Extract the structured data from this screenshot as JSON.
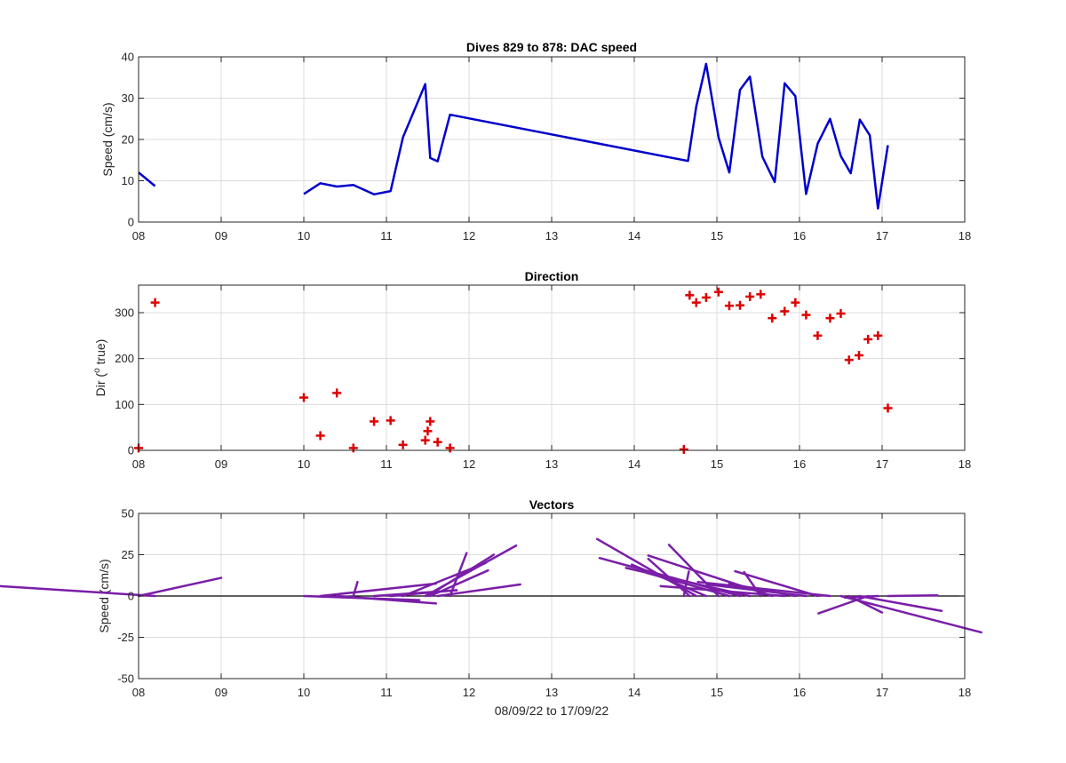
{
  "figure": {
    "xlabel": "08/09/22 to 17/09/22",
    "x_ticks": [
      8,
      9,
      10,
      11,
      12,
      13,
      14,
      15,
      16,
      17,
      18
    ],
    "x_tick_labels": [
      "08",
      "09",
      "10",
      "11",
      "12",
      "13",
      "14",
      "15",
      "16",
      "17",
      "18"
    ]
  },
  "chart_data": [
    {
      "type": "line",
      "title": "Dives 829 to 878: DAC speed",
      "ylabel": "Speed (cm/s)",
      "xlim": [
        8,
        18
      ],
      "ylim": [
        0,
        40
      ],
      "y_ticks": [
        0,
        10,
        20,
        30,
        40
      ],
      "grid": true,
      "color": "#0000cc",
      "segments": [
        [
          [
            8.0,
            12.0
          ],
          [
            8.2,
            8.7
          ]
        ],
        [
          [
            10.0,
            6.8
          ],
          [
            10.2,
            9.4
          ],
          [
            10.4,
            8.6
          ],
          [
            10.6,
            9.0
          ],
          [
            10.85,
            6.7
          ],
          [
            11.05,
            7.5
          ],
          [
            11.2,
            20.5
          ],
          [
            11.47,
            33.4
          ],
          [
            11.53,
            15.5
          ],
          [
            11.62,
            14.7
          ],
          [
            11.77,
            26.0
          ],
          [
            14.65,
            14.8
          ],
          [
            14.75,
            28.0
          ],
          [
            14.87,
            38.3
          ],
          [
            15.02,
            20.5
          ],
          [
            15.15,
            12.0
          ],
          [
            15.28,
            32.0
          ],
          [
            15.4,
            35.2
          ],
          [
            15.55,
            15.8
          ],
          [
            15.7,
            9.7
          ],
          [
            15.82,
            33.6
          ],
          [
            15.95,
            30.5
          ],
          [
            16.08,
            6.8
          ],
          [
            16.22,
            19.0
          ],
          [
            16.37,
            25.0
          ],
          [
            16.5,
            16.0
          ],
          [
            16.62,
            11.8
          ],
          [
            16.73,
            24.8
          ],
          [
            16.85,
            21.0
          ],
          [
            16.95,
            3.3
          ],
          [
            17.07,
            18.6
          ]
        ]
      ]
    },
    {
      "type": "scatter",
      "title": "Direction",
      "ylabel": "Dir (° true)",
      "ylabel_parts": [
        "Dir (",
        "o",
        " true)"
      ],
      "xlim": [
        8,
        18
      ],
      "ylim": [
        0,
        360
      ],
      "y_ticks": [
        0,
        100,
        200,
        300
      ],
      "grid": true,
      "marker": "+",
      "color": "#dd0000",
      "points": [
        [
          8.0,
          5
        ],
        [
          8.2,
          322
        ],
        [
          10.0,
          115
        ],
        [
          10.2,
          32
        ],
        [
          10.4,
          125
        ],
        [
          10.6,
          5
        ],
        [
          10.85,
          63
        ],
        [
          11.05,
          65
        ],
        [
          11.2,
          12
        ],
        [
          11.47,
          22
        ],
        [
          11.5,
          42
        ],
        [
          11.53,
          63
        ],
        [
          11.62,
          18
        ],
        [
          11.77,
          5
        ],
        [
          14.6,
          2
        ],
        [
          14.67,
          338
        ],
        [
          14.75,
          322
        ],
        [
          14.87,
          333
        ],
        [
          15.02,
          345
        ],
        [
          15.15,
          315
        ],
        [
          15.28,
          316
        ],
        [
          15.4,
          335
        ],
        [
          15.53,
          340
        ],
        [
          15.67,
          288
        ],
        [
          15.82,
          303
        ],
        [
          15.95,
          322
        ],
        [
          16.08,
          295
        ],
        [
          16.22,
          250
        ],
        [
          16.37,
          288
        ],
        [
          16.5,
          298
        ],
        [
          16.6,
          197
        ],
        [
          16.72,
          207
        ],
        [
          16.83,
          242
        ],
        [
          16.95,
          250
        ],
        [
          17.07,
          92
        ]
      ]
    },
    {
      "type": "quiver",
      "title": "Vectors",
      "ylabel": "Speed (cm/s)",
      "xlim": [
        8,
        18
      ],
      "ylim": [
        -50,
        50
      ],
      "y_ticks": [
        -50,
        -25,
        0,
        25,
        50
      ],
      "grid": true,
      "color": "#7a1ea8",
      "baseline": 0,
      "vectors": [
        [
          8.0,
          1.0,
          11.0
        ],
        [
          8.2,
          -2.2,
          7.0
        ],
        [
          10.0,
          1.4,
          -2.5
        ],
        [
          10.2,
          1.4,
          7.5
        ],
        [
          10.4,
          1.2,
          -4.5
        ],
        [
          10.6,
          0.05,
          8.5
        ],
        [
          10.85,
          1.0,
          3.5
        ],
        [
          11.05,
          0.8,
          3.5
        ],
        [
          11.2,
          1.0,
          20.0
        ],
        [
          11.47,
          1.1,
          30.5
        ],
        [
          11.5,
          0.8,
          25.0
        ],
        [
          11.53,
          0.7,
          15.5
        ],
        [
          11.62,
          1.0,
          7.0
        ],
        [
          11.77,
          0.2,
          26.0
        ],
        [
          14.6,
          0.06,
          14.8
        ],
        [
          14.67,
          -0.5,
          22.5
        ],
        [
          14.75,
          -1.2,
          34.5
        ],
        [
          14.87,
          -0.9,
          19.0
        ],
        [
          15.02,
          -0.6,
          31.0
        ],
        [
          15.15,
          -1.0,
          14.0
        ],
        [
          15.28,
          -1.7,
          23.0
        ],
        [
          15.4,
          -1.5,
          17.0
        ],
        [
          15.53,
          -0.2,
          14.5
        ],
        [
          15.67,
          -1.5,
          24.5
        ],
        [
          15.82,
          -1.5,
          6.0
        ],
        [
          15.95,
          -0.8,
          7.5
        ],
        [
          16.08,
          -1.2,
          7.0
        ],
        [
          16.22,
          -1.0,
          15.0
        ],
        [
          16.37,
          -1.6,
          8.5
        ],
        [
          16.5,
          1.7,
          -22.0
        ],
        [
          16.6,
          0.4,
          -10.0
        ],
        [
          16.72,
          1.0,
          -9.0
        ],
        [
          16.83,
          -0.6,
          -10.5
        ],
        [
          16.95,
          -0.4,
          -1.0
        ],
        [
          17.07,
          0.6,
          0.4
        ]
      ]
    }
  ]
}
